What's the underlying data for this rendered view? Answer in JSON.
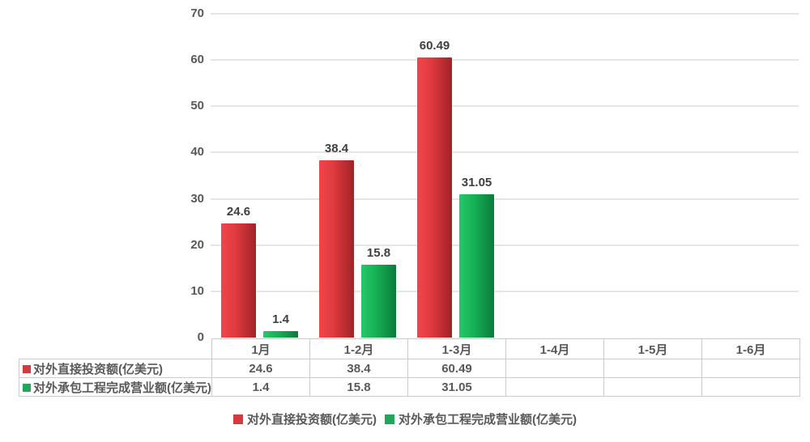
{
  "chart_data": {
    "type": "bar",
    "title": "",
    "xlabel": "",
    "ylabel": "",
    "categories": [
      "1月",
      "1-2月",
      "1-3月",
      "1-4月",
      "1-5月",
      "1-6月"
    ],
    "series": [
      {
        "name": "对外直接投资额(亿美元)",
        "values": [
          24.6,
          38.4,
          60.49,
          null,
          null,
          null
        ],
        "value_labels": [
          "24.6",
          "38.4",
          "60.49",
          "",
          "",
          ""
        ],
        "color": "#e03a3f",
        "color_light": "#ef464b",
        "color_dark": "#9f2327",
        "swatch_color": "#d43a3e"
      },
      {
        "name": "对外承包工程完成营业额(亿美元)",
        "values": [
          1.4,
          15.8,
          31.05,
          null,
          null,
          null
        ],
        "value_labels": [
          "1.4",
          "15.8",
          "31.05",
          "",
          "",
          ""
        ],
        "color": "#16b356",
        "color_light": "#28c76a",
        "color_dark": "#0b7a3c",
        "swatch_color": "#21a65c"
      }
    ],
    "ylim": [
      0,
      70
    ],
    "yticks": [
      0,
      10,
      20,
      30,
      40,
      50,
      60,
      70
    ],
    "grid": true,
    "legend_position": "bottom",
    "grid_color": "#e5e5e5",
    "table_border_color": "#cccccc",
    "text_color": "#595959"
  }
}
